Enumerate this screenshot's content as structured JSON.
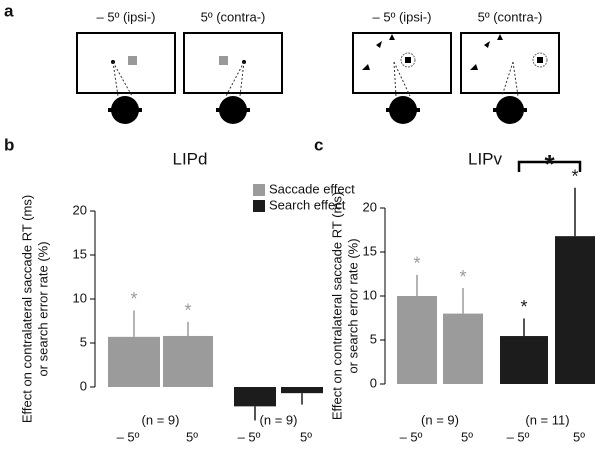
{
  "panel_labels": [
    "a",
    "b",
    "c"
  ],
  "panel_a": {
    "labels": [
      "– 5º (ipsi-)",
      "5º (contra-)",
      "– 5º (ipsi-)",
      "5º (contra-)"
    ]
  },
  "chart_data": [
    {
      "type": "bar",
      "title": "LIPd",
      "ylabel": [
        "Effect on contralateral saccade RT (ms)",
        "or search error rate (%)"
      ],
      "categories": [
        "– 5º",
        "5º"
      ],
      "ylim": [
        0,
        20
      ],
      "yticks": [
        0,
        5,
        10,
        15,
        20
      ],
      "legend": true,
      "series": [
        {
          "name": "Saccade effect",
          "color": "#9b9b9b",
          "values": [
            5.7,
            5.8
          ],
          "errors": [
            3.0,
            1.6
          ],
          "stars": [
            "*",
            "*"
          ],
          "n_label": "(n = 9)"
        },
        {
          "name": "Search effect",
          "color": "#1c1c1c",
          "values": [
            -2.2,
            -0.7
          ],
          "errors": [
            1.6,
            1.3
          ],
          "n_label": "(n = 9)"
        }
      ]
    },
    {
      "type": "bar",
      "title": "LIPv",
      "ylabel": [
        "Effect on contralateral saccade RT (ms)",
        "or search error rate (%)"
      ],
      "categories": [
        "– 5º",
        "5º"
      ],
      "ylim": [
        0,
        20
      ],
      "yticks": [
        0,
        5,
        10,
        15,
        20
      ],
      "legend": false,
      "bracket_label": "*",
      "series": [
        {
          "name": "Saccade effect",
          "color": "#9b9b9b",
          "values": [
            10.0,
            8.0
          ],
          "errors": [
            2.4,
            2.9
          ],
          "stars": [
            "*",
            "*"
          ],
          "n_label": "(n = 9)"
        },
        {
          "name": "Search effect",
          "color": "#1c1c1c",
          "values": [
            5.45,
            16.8
          ],
          "errors": [
            2.0,
            5.5
          ],
          "stars": [
            "*",
            "*"
          ],
          "n_label": "(n = 11)"
        }
      ]
    }
  ]
}
